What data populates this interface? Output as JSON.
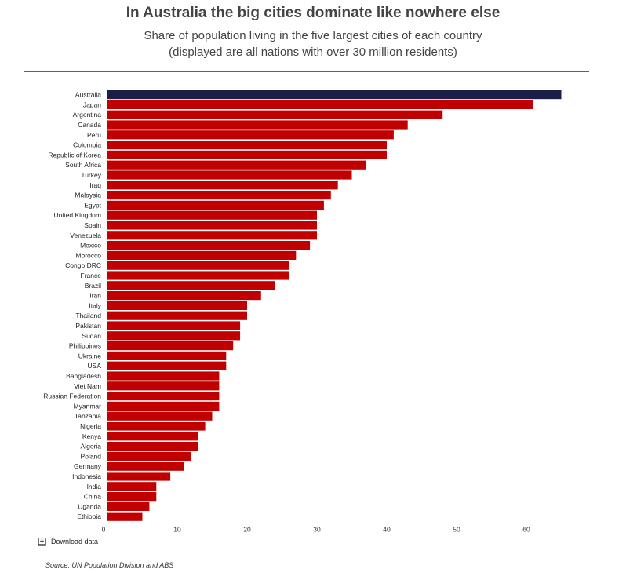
{
  "title": "In Australia the big cities dominate like nowhere else",
  "subtitle_line1": "Share of population living in the five largest cities of each country",
  "subtitle_line2": "(displayed are all nations with over 30 million residents)",
  "download_label": "Download data",
  "source": "Source: UN Population Division and ABS",
  "colors": {
    "highlight": "#1a1f4a",
    "bar": "#c00000",
    "rule": "#c0392b"
  },
  "chart_data": {
    "type": "bar",
    "orientation": "horizontal",
    "title": "In Australia the big cities dominate like nowhere else",
    "xlim": [
      0,
      70
    ],
    "xticks": [
      0,
      10,
      20,
      30,
      40,
      50,
      60
    ],
    "highlight": "Australia",
    "categories": [
      "Australia",
      "Japan",
      "Argentina",
      "Canada",
      "Peru",
      "Colombia",
      "Republic of Korea",
      "South Africa",
      "Turkey",
      "Iraq",
      "Malaysia",
      "Egypt",
      "United Kingdom",
      "Spain",
      "Venezuela",
      "Mexico",
      "Morocco",
      "Congo DRC",
      "France",
      "Brazil",
      "Iran",
      "Italy",
      "Thailand",
      "Pakistan",
      "Sudan",
      "Philippines",
      "Ukraine",
      "USA",
      "Bangladesh",
      "Viet Nam",
      "Russian Federation",
      "Myanmar",
      "Tanzania",
      "Nigeria",
      "Kenya",
      "Algeria",
      "Poland",
      "Germany",
      "Indonesia",
      "India",
      "China",
      "Uganda",
      "Ethiopia"
    ],
    "values": [
      65,
      61,
      48,
      43,
      41,
      40,
      40,
      37,
      35,
      33,
      32,
      31,
      30,
      30,
      30,
      29,
      27,
      26,
      26,
      24,
      22,
      20,
      20,
      19,
      19,
      18,
      17,
      17,
      16,
      16,
      16,
      16,
      15,
      14,
      13,
      13,
      12,
      11,
      9,
      7,
      7,
      6,
      5
    ]
  }
}
